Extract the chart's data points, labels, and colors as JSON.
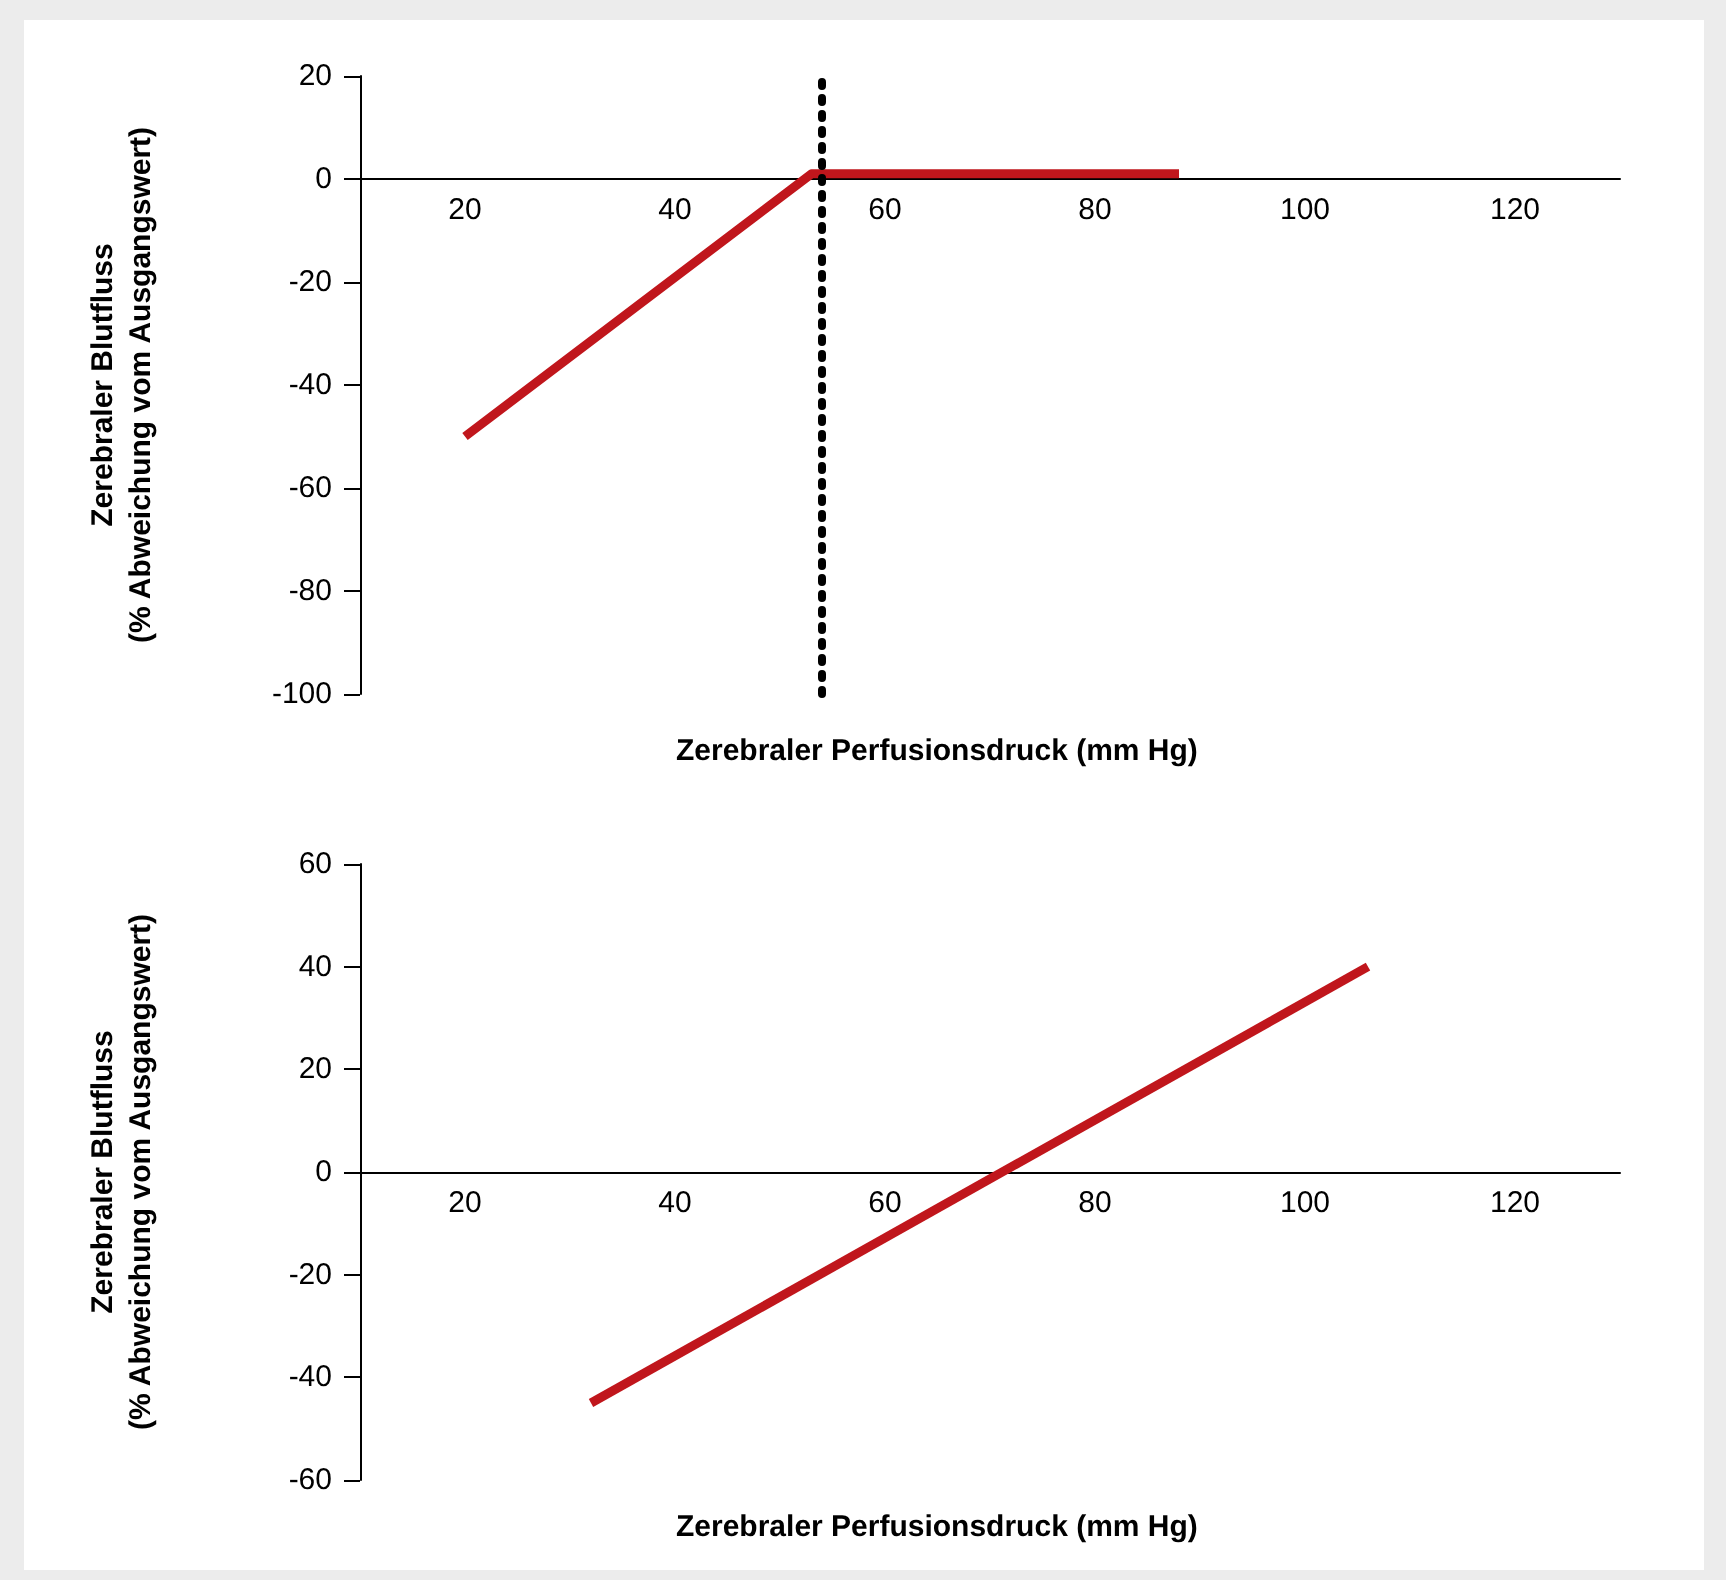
{
  "chart_data": [
    {
      "type": "line",
      "xlabel": "Zerebraler Perfusionsdruck (mm Hg)",
      "ylabel": "Zerebraler Blutfluss\n(% Abweichung vom Ausgangswert)",
      "x": [
        20,
        53,
        88
      ],
      "series": [
        {
          "color": "#c0161c",
          "values": [
            -50,
            1,
            1
          ]
        }
      ],
      "xlim": [
        10,
        130
      ],
      "xticks": [
        20,
        40,
        60,
        80,
        100,
        120
      ],
      "ylim": [
        -100,
        20
      ],
      "yticks": [
        20,
        0,
        -20,
        -40,
        -60,
        -80,
        -100
      ],
      "grid": false,
      "ref_lines": [
        {
          "axis": "x",
          "value": 54,
          "color": "#000000",
          "line_style": "dotted"
        }
      ]
    },
    {
      "type": "line",
      "xlabel": "Zerebraler Perfusionsdruck (mm Hg)",
      "ylabel": "Zerebraler Blutfluss\n(% Abweichung vom Ausgangswert)",
      "x": [
        32,
        106
      ],
      "series": [
        {
          "color": "#c0161c",
          "values": [
            -45,
            40
          ]
        }
      ],
      "xlim": [
        10,
        130
      ],
      "xticks": [
        20,
        40,
        60,
        80,
        100,
        120
      ],
      "ylim": [
        -60,
        60
      ],
      "yticks": [
        60,
        40,
        20,
        0,
        -20,
        -40,
        -60
      ],
      "grid": false
    }
  ]
}
